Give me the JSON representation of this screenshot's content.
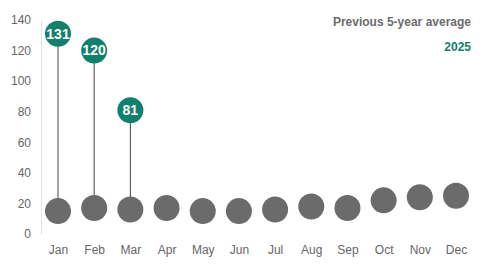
{
  "chart_data": {
    "type": "dot",
    "categories": [
      "Jan",
      "Feb",
      "Mar",
      "Apr",
      "May",
      "Jun",
      "Jul",
      "Aug",
      "Sep",
      "Oct",
      "Nov",
      "Dec"
    ],
    "series": [
      {
        "name": "Previous 5-year average",
        "color": "#6b6b6b",
        "values": [
          15,
          17,
          16,
          17,
          15,
          15,
          16,
          18,
          17,
          22,
          24,
          25
        ]
      },
      {
        "name": "2025",
        "color": "#13806d",
        "values": [
          131,
          120,
          81,
          null,
          null,
          null,
          null,
          null,
          null,
          null,
          null,
          null
        ],
        "data_labels": true
      }
    ],
    "ylim": [
      0,
      140
    ],
    "yticks": [
      0,
      20,
      40,
      60,
      80,
      100,
      120,
      140
    ],
    "grid": false,
    "legend": "top-right"
  }
}
